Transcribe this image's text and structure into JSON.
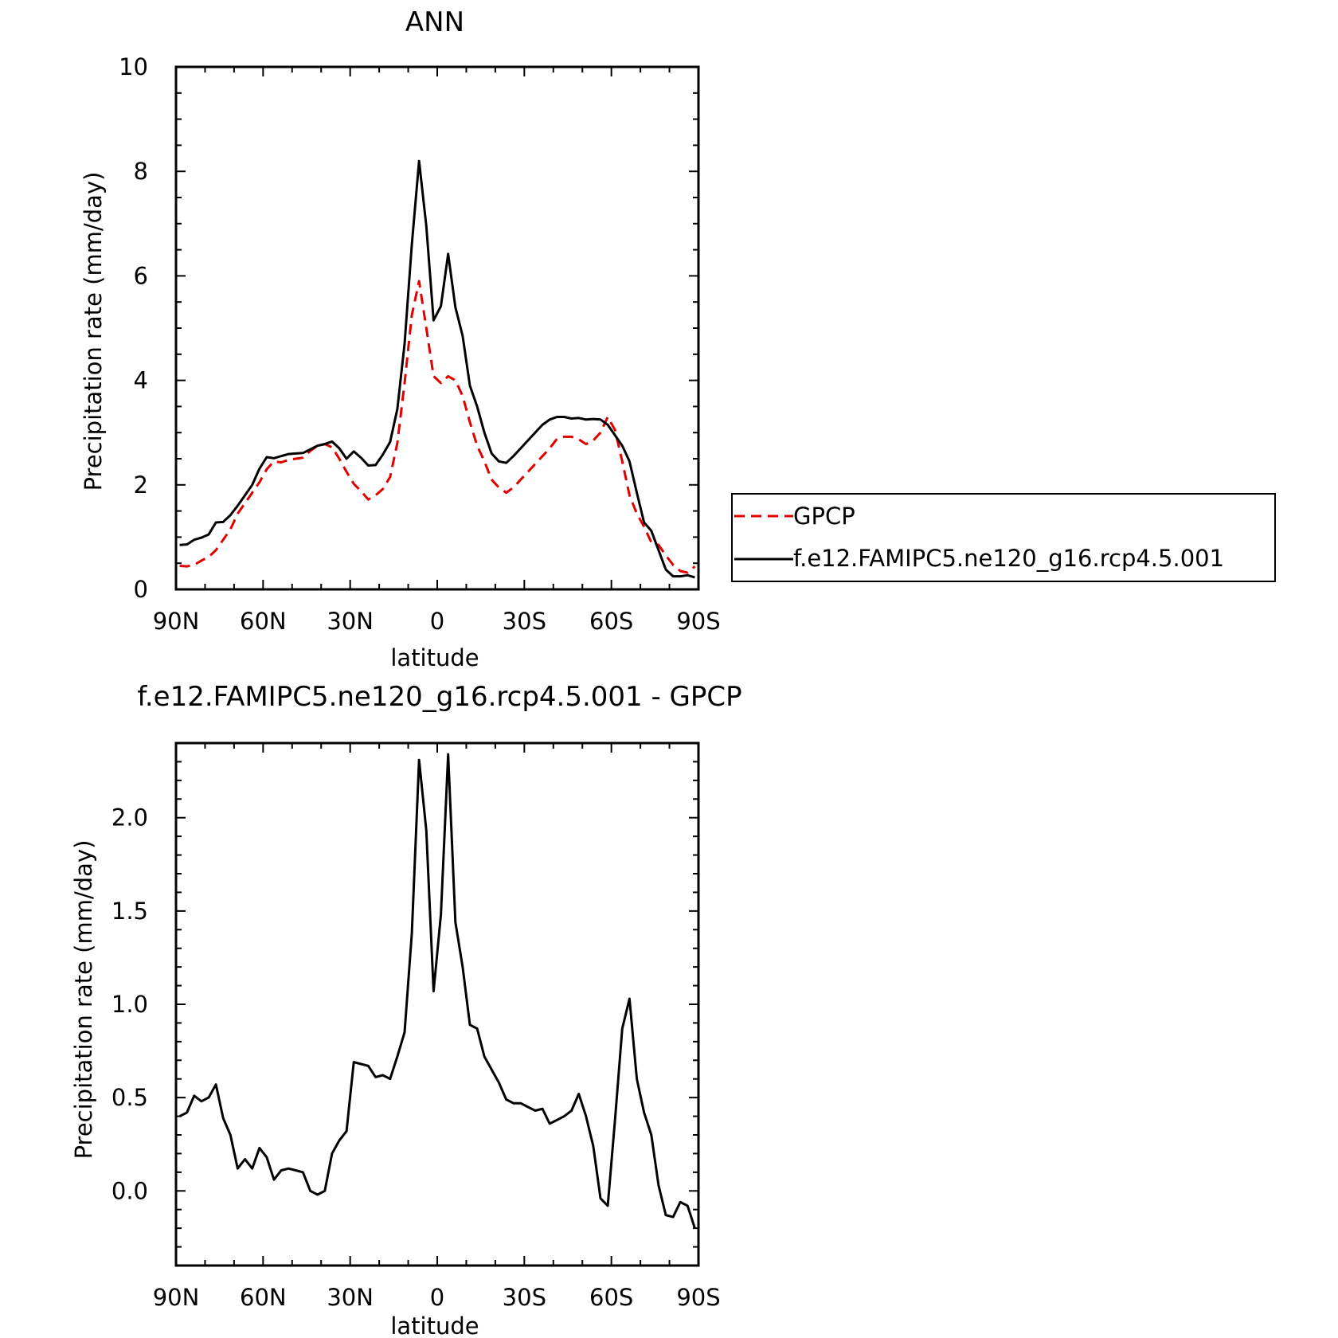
{
  "chart_data": [
    {
      "type": "line",
      "title": "ANN",
      "xlabel": "latitude",
      "ylabel": "Precipitation rate (mm/day)",
      "xlim": [
        90,
        -90
      ],
      "ylim": [
        0,
        10
      ],
      "xtick_values": [
        90,
        60,
        30,
        0,
        -30,
        -60,
        -90
      ],
      "xtick_labels": [
        "90N",
        "60N",
        "30N",
        "0",
        "30S",
        "60S",
        "90S"
      ],
      "ytick_values": [
        0,
        2,
        4,
        6,
        8,
        10
      ],
      "ytick_labels": [
        "0",
        "2",
        "4",
        "6",
        "8",
        "10"
      ],
      "legend_position": "right",
      "series": [
        {
          "name": "GPCP",
          "color": "#e00000",
          "style": "dashed",
          "x": [
            88.75,
            86.25,
            83.75,
            81.25,
            78.75,
            76.25,
            73.75,
            71.25,
            68.75,
            66.25,
            63.75,
            61.25,
            58.75,
            56.25,
            53.75,
            51.25,
            48.75,
            46.25,
            43.75,
            41.25,
            38.75,
            36.25,
            33.75,
            31.25,
            28.75,
            26.25,
            23.75,
            21.25,
            18.75,
            16.25,
            13.75,
            11.25,
            8.75,
            6.25,
            3.75,
            1.25,
            -1.25,
            -3.75,
            -6.25,
            -8.75,
            -11.25,
            -13.75,
            -16.25,
            -18.75,
            -21.25,
            -23.75,
            -26.25,
            -28.75,
            -31.25,
            -33.75,
            -36.25,
            -38.75,
            -41.25,
            -43.75,
            -46.25,
            -48.75,
            -51.25,
            -53.75,
            -56.25,
            -58.75,
            -61.25,
            -63.75,
            -66.25,
            -68.75,
            -71.25,
            -73.75,
            -76.25,
            -78.75,
            -81.25,
            -83.75,
            -86.25,
            -88.75
          ],
          "values": [
            0.45,
            0.44,
            0.47,
            0.55,
            0.62,
            0.75,
            0.95,
            1.15,
            1.45,
            1.65,
            1.85,
            2.05,
            2.3,
            2.45,
            2.43,
            2.48,
            2.5,
            2.52,
            2.65,
            2.75,
            2.78,
            2.72,
            2.5,
            2.25,
            2.02,
            1.88,
            1.72,
            1.8,
            1.92,
            2.15,
            2.8,
            3.95,
            5.25,
            5.9,
            5.0,
            4.08,
            3.95,
            4.08,
            4.0,
            3.7,
            3.2,
            2.75,
            2.45,
            2.1,
            1.95,
            1.85,
            1.95,
            2.1,
            2.25,
            2.4,
            2.55,
            2.7,
            2.88,
            2.92,
            2.92,
            2.87,
            2.78,
            2.85,
            3.0,
            3.3,
            3.05,
            2.45,
            1.8,
            1.45,
            1.2,
            0.9,
            0.85,
            0.65,
            0.47,
            0.35,
            0.32,
            0.44
          ]
        },
        {
          "name": "f.e12.FAMIPC5.ne120_g16.rcp4.5.001",
          "color": "#000000",
          "style": "solid",
          "x": [
            88.75,
            86.25,
            83.75,
            81.25,
            78.75,
            76.25,
            73.75,
            71.25,
            68.75,
            66.25,
            63.75,
            61.25,
            58.75,
            56.25,
            53.75,
            51.25,
            48.75,
            46.25,
            43.75,
            41.25,
            38.75,
            36.25,
            33.75,
            31.25,
            28.75,
            26.25,
            23.75,
            21.25,
            18.75,
            16.25,
            13.75,
            11.25,
            8.75,
            6.25,
            3.75,
            1.25,
            -1.25,
            -3.75,
            -6.25,
            -8.75,
            -11.25,
            -13.75,
            -16.25,
            -18.75,
            -21.25,
            -23.75,
            -26.25,
            -28.75,
            -31.25,
            -33.75,
            -36.25,
            -38.75,
            -41.25,
            -43.75,
            -46.25,
            -48.75,
            -51.25,
            -53.75,
            -56.25,
            -58.75,
            -61.25,
            -63.75,
            -66.25,
            -68.75,
            -71.25,
            -73.75,
            -76.25,
            -78.75,
            -81.25,
            -83.75,
            -86.25,
            -88.75
          ],
          "values": [
            0.85,
            0.86,
            0.95,
            0.99,
            1.05,
            1.28,
            1.29,
            1.42,
            1.6,
            1.8,
            2.0,
            2.31,
            2.53,
            2.51,
            2.55,
            2.59,
            2.6,
            2.61,
            2.68,
            2.75,
            2.78,
            2.83,
            2.7,
            2.5,
            2.64,
            2.52,
            2.37,
            2.38,
            2.58,
            2.82,
            3.45,
            4.7,
            6.6,
            8.2,
            6.95,
            5.15,
            5.42,
            6.42,
            5.4,
            4.85,
            3.9,
            3.5,
            3.0,
            2.6,
            2.45,
            2.42,
            2.55,
            2.7,
            2.85,
            3.0,
            3.15,
            3.25,
            3.3,
            3.3,
            3.27,
            3.28,
            3.25,
            3.26,
            3.25,
            3.15,
            2.95,
            2.75,
            2.45,
            1.85,
            1.28,
            1.12,
            0.75,
            0.38,
            0.25,
            0.25,
            0.27,
            0.23
          ]
        }
      ]
    },
    {
      "type": "line",
      "title": "f.e12.FAMIPC5.ne120_g16.rcp4.5.001 - GPCP",
      "xlabel": "latitude",
      "ylabel": "Precipitation rate (mm/day)",
      "xlim": [
        90,
        -90
      ],
      "ylim": [
        -0.4,
        2.4
      ],
      "xtick_values": [
        90,
        60,
        30,
        0,
        -30,
        -60,
        -90
      ],
      "xtick_labels": [
        "90N",
        "60N",
        "30N",
        "0",
        "30S",
        "60S",
        "90S"
      ],
      "ytick_values": [
        0.0,
        0.5,
        1.0,
        1.5,
        2.0
      ],
      "ytick_labels": [
        "0.0",
        "0.5",
        "1.0",
        "1.5",
        "2.0"
      ],
      "series": [
        {
          "color": "#000000",
          "style": "solid",
          "x": [
            88.75,
            86.25,
            83.75,
            81.25,
            78.75,
            76.25,
            73.75,
            71.25,
            68.75,
            66.25,
            63.75,
            61.25,
            58.75,
            56.25,
            53.75,
            51.25,
            48.75,
            46.25,
            43.75,
            41.25,
            38.75,
            36.25,
            33.75,
            31.25,
            28.75,
            26.25,
            23.75,
            21.25,
            18.75,
            16.25,
            13.75,
            11.25,
            8.75,
            6.25,
            3.75,
            1.25,
            -1.25,
            -3.75,
            -6.25,
            -8.75,
            -11.25,
            -13.75,
            -16.25,
            -18.75,
            -21.25,
            -23.75,
            -26.25,
            -28.75,
            -31.25,
            -33.75,
            -36.25,
            -38.75,
            -41.25,
            -43.75,
            -46.25,
            -48.75,
            -51.25,
            -53.75,
            -56.25,
            -58.75,
            -61.25,
            -63.75,
            -66.25,
            -68.75,
            -71.25,
            -73.75,
            -76.25,
            -78.75,
            -81.25,
            -83.75,
            -86.25,
            -88.75
          ],
          "values": [
            0.4,
            0.42,
            0.51,
            0.48,
            0.5,
            0.57,
            0.39,
            0.3,
            0.12,
            0.17,
            0.12,
            0.23,
            0.18,
            0.06,
            0.11,
            0.12,
            0.11,
            0.1,
            0.0,
            -0.02,
            0.0,
            0.2,
            0.27,
            0.32,
            0.69,
            0.68,
            0.67,
            0.61,
            0.62,
            0.6,
            0.72,
            0.85,
            1.38,
            2.31,
            1.93,
            1.07,
            1.48,
            2.34,
            1.44,
            1.2,
            0.89,
            0.87,
            0.72,
            0.65,
            0.58,
            0.49,
            0.47,
            0.47,
            0.45,
            0.43,
            0.44,
            0.36,
            0.38,
            0.4,
            0.43,
            0.52,
            0.4,
            0.24,
            -0.04,
            -0.08,
            0.38,
            0.87,
            1.03,
            0.6,
            0.42,
            0.3,
            0.03,
            -0.13,
            -0.14,
            -0.06,
            -0.08,
            -0.2
          ]
        }
      ]
    }
  ]
}
